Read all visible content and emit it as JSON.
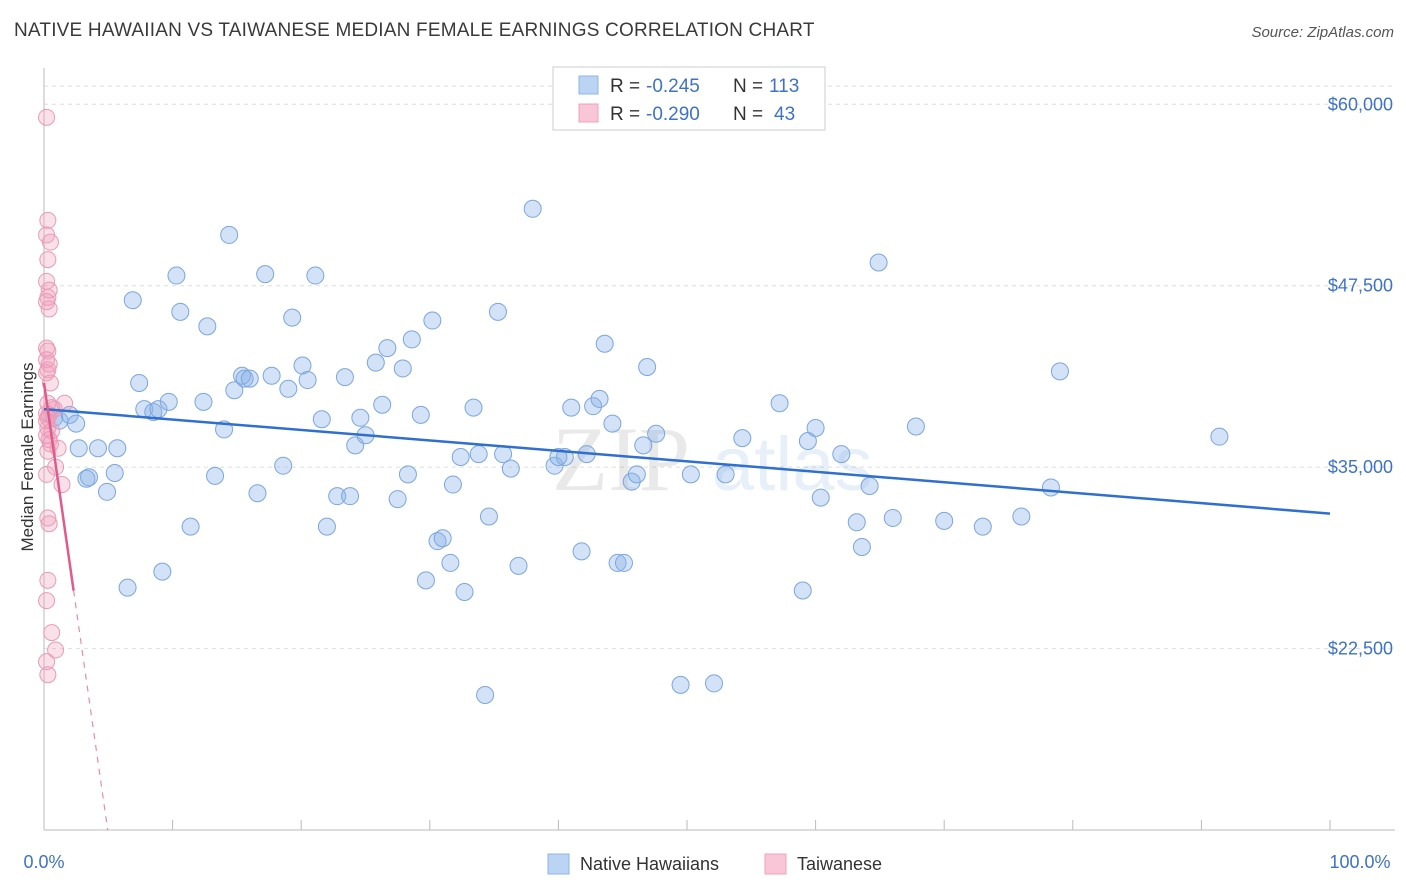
{
  "header": {
    "title": "NATIVE HAWAIIAN VS TAIWANESE MEDIAN FEMALE EARNINGS CORRELATION CHART",
    "source": "Source: ZipAtlas.com"
  },
  "legend_top": {
    "rows": [
      {
        "r_label": "R =",
        "r_value": "-0.245",
        "n_label": "N =",
        "n_value": "113"
      },
      {
        "r_label": "R =",
        "r_value": "-0.290",
        "n_label": "N =",
        "n_value": "43"
      }
    ]
  },
  "colors": {
    "native_hawaiians": "#8bb4e8",
    "native_hawaiians_line": "#2f6fcf",
    "taiwanese": "#f0a0bc",
    "taiwanese_line": "#e05a8a",
    "axis_text": "#3d73c6"
  },
  "chart_data": {
    "type": "scatter",
    "title": "NATIVE HAWAIIAN VS TAIWANESE MEDIAN FEMALE EARNINGS CORRELATION CHART",
    "xlabel": "",
    "ylabel": "Median Female Earnings",
    "xlim": [
      0,
      100
    ],
    "ylim": [
      10000,
      62500
    ],
    "x_tick_labels": [
      "0.0%",
      "100.0%"
    ],
    "y_ticks": [
      22500,
      35000,
      47500,
      60000
    ],
    "y_tick_labels": [
      "$22,500",
      "$35,000",
      "$47,500",
      "$60,000"
    ],
    "grid": true,
    "legend_position": "bottom",
    "series": [
      {
        "name": "Native Hawaiians",
        "color": "#8bb4e8",
        "trend": {
          "x": [
            0,
            100
          ],
          "y": [
            39000,
            31800
          ]
        },
        "points": [
          [
            0.8,
            38400
          ],
          [
            1.2,
            38200
          ],
          [
            2.0,
            38600
          ],
          [
            2.5,
            38000
          ],
          [
            2.7,
            36300
          ],
          [
            3.3,
            34200
          ],
          [
            3.5,
            34300
          ],
          [
            4.2,
            36300
          ],
          [
            4.9,
            33300
          ],
          [
            5.5,
            34600
          ],
          [
            5.7,
            36300
          ],
          [
            6.5,
            26700
          ],
          [
            6.9,
            46500
          ],
          [
            7.4,
            40800
          ],
          [
            7.8,
            39000
          ],
          [
            8.5,
            38800
          ],
          [
            8.9,
            39000
          ],
          [
            9.2,
            27800
          ],
          [
            9.7,
            39500
          ],
          [
            10.3,
            48200
          ],
          [
            10.6,
            45700
          ],
          [
            11.4,
            30900
          ],
          [
            12.4,
            39500
          ],
          [
            12.7,
            44700
          ],
          [
            13.3,
            34400
          ],
          [
            14.0,
            37600
          ],
          [
            14.4,
            51000
          ],
          [
            14.8,
            40300
          ],
          [
            15.4,
            41300
          ],
          [
            15.6,
            41100
          ],
          [
            16.0,
            41100
          ],
          [
            16.6,
            33200
          ],
          [
            17.2,
            48300
          ],
          [
            17.7,
            41300
          ],
          [
            18.6,
            35100
          ],
          [
            19.0,
            40400
          ],
          [
            19.3,
            45300
          ],
          [
            20.1,
            42000
          ],
          [
            20.5,
            41000
          ],
          [
            21.1,
            48200
          ],
          [
            21.6,
            38300
          ],
          [
            22.0,
            30900
          ],
          [
            22.8,
            33000
          ],
          [
            23.4,
            41200
          ],
          [
            23.8,
            33000
          ],
          [
            24.2,
            36500
          ],
          [
            24.6,
            38400
          ],
          [
            25.0,
            37200
          ],
          [
            25.8,
            42200
          ],
          [
            26.3,
            39300
          ],
          [
            26.7,
            43200
          ],
          [
            27.5,
            32800
          ],
          [
            27.9,
            41800
          ],
          [
            28.3,
            34500
          ],
          [
            28.6,
            43800
          ],
          [
            29.3,
            38600
          ],
          [
            29.7,
            27200
          ],
          [
            30.2,
            45100
          ],
          [
            30.6,
            29900
          ],
          [
            31.0,
            30100
          ],
          [
            31.8,
            33800
          ],
          [
            31.6,
            28400
          ],
          [
            32.4,
            35700
          ],
          [
            32.7,
            26400
          ],
          [
            33.4,
            39100
          ],
          [
            33.8,
            35900
          ],
          [
            34.6,
            31600
          ],
          [
            35.3,
            45700
          ],
          [
            35.7,
            35900
          ],
          [
            36.3,
            34900
          ],
          [
            36.9,
            28200
          ],
          [
            38.0,
            52800
          ],
          [
            39.7,
            35100
          ],
          [
            40.5,
            35700
          ],
          [
            41.0,
            39100
          ],
          [
            41.8,
            29200
          ],
          [
            42.2,
            35900
          ],
          [
            42.7,
            39200
          ],
          [
            43.2,
            39700
          ],
          [
            43.6,
            43500
          ],
          [
            44.2,
            38000
          ],
          [
            44.6,
            28400
          ],
          [
            45.1,
            28400
          ],
          [
            45.7,
            34000
          ],
          [
            46.1,
            34500
          ],
          [
            46.6,
            36500
          ],
          [
            46.9,
            41900
          ],
          [
            47.6,
            37300
          ],
          [
            49.5,
            20000
          ],
          [
            50.3,
            34500
          ],
          [
            52.1,
            20100
          ],
          [
            53.0,
            34500
          ],
          [
            54.3,
            37000
          ],
          [
            57.2,
            39400
          ],
          [
            59.0,
            26500
          ],
          [
            59.4,
            36800
          ],
          [
            60.0,
            37700
          ],
          [
            60.4,
            32900
          ],
          [
            62.0,
            35900
          ],
          [
            63.2,
            31200
          ],
          [
            63.6,
            29500
          ],
          [
            64.2,
            33700
          ],
          [
            64.9,
            49100
          ],
          [
            66.0,
            31500
          ],
          [
            67.8,
            37800
          ],
          [
            70.0,
            31300
          ],
          [
            73.0,
            30900
          ],
          [
            76.0,
            31600
          ],
          [
            78.3,
            33600
          ],
          [
            79.0,
            41600
          ],
          [
            91.4,
            37100
          ],
          [
            34.3,
            19300
          ],
          [
            40.0,
            35700
          ]
        ]
      },
      {
        "name": "Taiwanese",
        "color": "#f0a0bc",
        "trend": {
          "x": [
            0,
            2.3
          ],
          "y": [
            40800,
            26500
          ]
        },
        "points": [
          [
            0.2,
            59100
          ],
          [
            0.3,
            52000
          ],
          [
            0.2,
            51000
          ],
          [
            0.5,
            50500
          ],
          [
            0.3,
            49300
          ],
          [
            0.2,
            47800
          ],
          [
            0.4,
            47200
          ],
          [
            0.3,
            46700
          ],
          [
            0.2,
            46400
          ],
          [
            0.4,
            45900
          ],
          [
            0.2,
            43200
          ],
          [
            0.3,
            43000
          ],
          [
            0.2,
            42400
          ],
          [
            0.4,
            42100
          ],
          [
            0.3,
            41700
          ],
          [
            0.2,
            41500
          ],
          [
            0.5,
            40800
          ],
          [
            0.3,
            39400
          ],
          [
            0.6,
            39100
          ],
          [
            0.8,
            39000
          ],
          [
            0.2,
            38700
          ],
          [
            0.4,
            38600
          ],
          [
            0.3,
            38400
          ],
          [
            0.2,
            38200
          ],
          [
            0.3,
            37700
          ],
          [
            0.6,
            37500
          ],
          [
            0.2,
            37200
          ],
          [
            0.4,
            36900
          ],
          [
            0.5,
            36600
          ],
          [
            1.1,
            36300
          ],
          [
            0.3,
            36100
          ],
          [
            0.9,
            35000
          ],
          [
            0.2,
            34500
          ],
          [
            1.4,
            33800
          ],
          [
            0.3,
            31500
          ],
          [
            0.4,
            31100
          ],
          [
            0.3,
            27200
          ],
          [
            0.2,
            25800
          ],
          [
            0.6,
            23600
          ],
          [
            0.9,
            22400
          ],
          [
            0.2,
            21600
          ],
          [
            0.3,
            20700
          ],
          [
            1.6,
            39400
          ]
        ]
      }
    ]
  },
  "bottom_legend": {
    "items": [
      {
        "label": "Native Hawaiians"
      },
      {
        "label": "Taiwanese"
      }
    ]
  },
  "watermark": {
    "part1": "ZIP",
    "part2": "atlas"
  }
}
